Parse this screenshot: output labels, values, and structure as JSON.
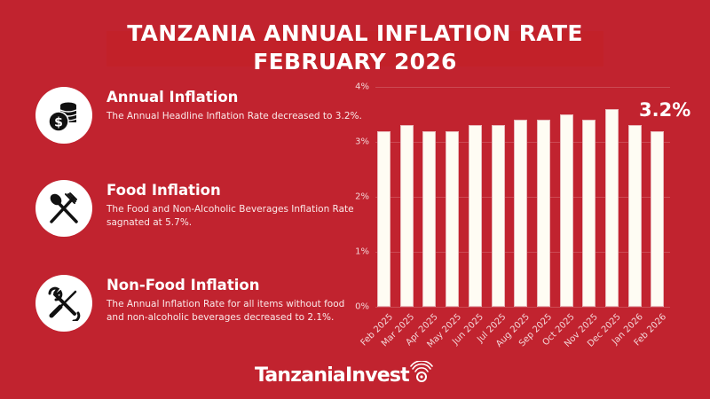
{
  "header": {
    "title_line1": "TANZANIA ANNUAL INFLATION RATE",
    "title_line2": "FEBRUARY 2026"
  },
  "cards": [
    {
      "icon": "coins-dollar-icon",
      "title": "Annual Inflation",
      "text": "The Annual Headline Inflation Rate decreased to 3.2%."
    },
    {
      "icon": "fork-spoon-icon",
      "title": "Food Inflation",
      "text": "The Food and Non-Alcoholic Beverages Inflation Rate sagnated at 5.7%."
    },
    {
      "icon": "wrench-screwdriver-icon",
      "title": "Non-Food Inflation",
      "text": "The Annual Inflation Rate for all items without food and non-alcoholic beverages decreased to 2.1%."
    }
  ],
  "callout": "3.2%",
  "logo": {
    "text": "TanzaniaInvest"
  },
  "colors": {
    "background": "#C1232F",
    "bar": "#FEFCF3",
    "text": "#FFFFFF"
  },
  "chart_data": {
    "type": "bar",
    "title": "Tanzania Annual Inflation Rate February 2026",
    "xlabel": "",
    "ylabel": "",
    "categories": [
      "Feb 2025",
      "Mar 2025",
      "Apr 2025",
      "May 2025",
      "Jun 2025",
      "Jul 2025",
      "Aug 2025",
      "Sep 2025",
      "Oct 2025",
      "Nov 2025",
      "Dec 2025",
      "Jan 2026",
      "Feb 2026"
    ],
    "values": [
      3.2,
      3.3,
      3.2,
      3.2,
      3.3,
      3.3,
      3.4,
      3.4,
      3.5,
      3.4,
      3.6,
      3.3,
      3.2
    ],
    "ylim": [
      0,
      4
    ],
    "yticks": [
      "0%",
      "1%",
      "2%",
      "3%",
      "4%"
    ],
    "grid": true,
    "legend": "none",
    "annotations": [
      "3.2%"
    ]
  }
}
